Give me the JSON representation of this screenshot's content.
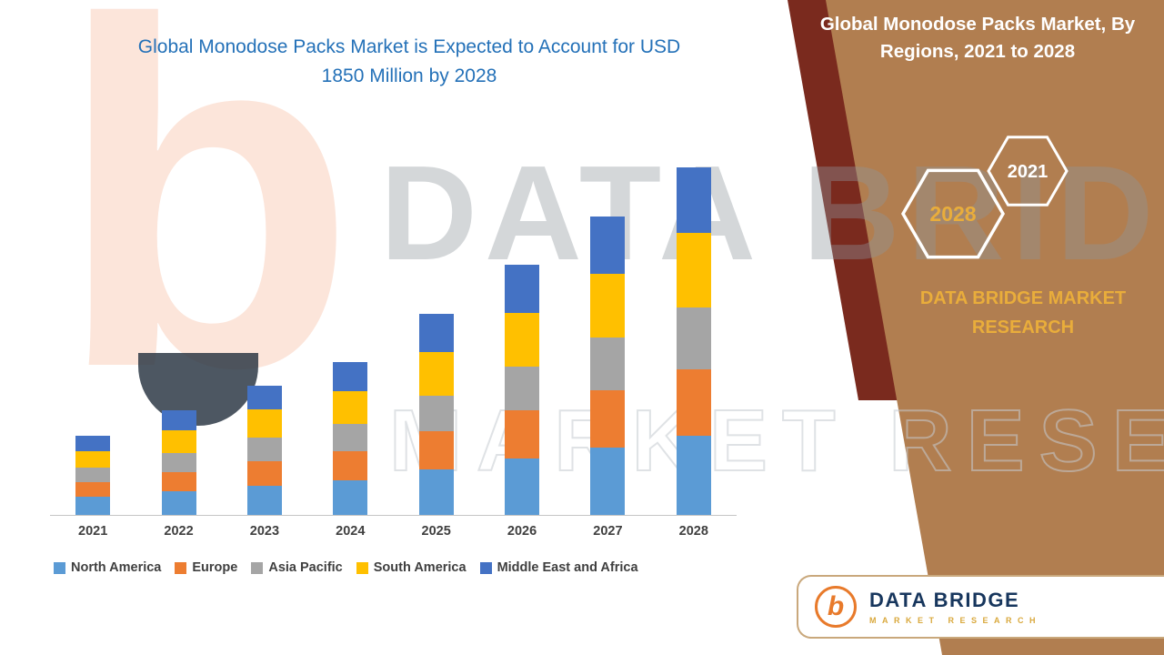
{
  "slide": {
    "left_title": "Global Monodose Packs Market is Expected to Account for USD 1850 Million by 2028",
    "right_panel": {
      "title": "Global Monodose Packs Market, By Regions, 2021 to 2028",
      "hex_back": "2028",
      "hex_front": "2021",
      "brand": "DATA BRIDGE MARKET RESEARCH"
    },
    "watermark": {
      "brand": "DATA BRIDGE",
      "tagline": "MARKET RESEARCH"
    },
    "footer": {
      "name": "DATA BRIDGE",
      "tagline": "MARKET RESEARCH"
    },
    "colors": {
      "panel_tan": "#B17E50",
      "panel_maroon": "#7A2A1E",
      "title_blue": "#2471B8",
      "brand_gold": "#E9AD3B"
    }
  },
  "chart_data": {
    "type": "bar",
    "stacked": true,
    "title": "Global Monodose Packs Market is Expected to Account for USD 1850 Million by 2028",
    "unit": "USD Million",
    "categories": [
      "2021",
      "2022",
      "2023",
      "2024",
      "2025",
      "2026",
      "2027",
      "2028"
    ],
    "series": [
      {
        "name": "North America",
        "color": "#5B9BD5",
        "values": [
          95,
          125,
          155,
          185,
          240,
          300,
          360,
          420
        ]
      },
      {
        "name": "Europe",
        "color": "#ED7D31",
        "values": [
          80,
          105,
          130,
          155,
          205,
          255,
          305,
          355
        ]
      },
      {
        "name": "Asia Pacific",
        "color": "#A5A5A5",
        "values": [
          75,
          100,
          125,
          145,
          190,
          235,
          280,
          330
        ]
      },
      {
        "name": "South America",
        "color": "#FFC000",
        "values": [
          90,
          120,
          150,
          175,
          230,
          285,
          340,
          395
        ]
      },
      {
        "name": "Middle East and Africa",
        "color": "#4472C4",
        "values": [
          80,
          105,
          130,
          155,
          205,
          255,
          305,
          350
        ]
      }
    ],
    "totals": [
      420,
      555,
      690,
      815,
      1070,
      1330,
      1590,
      1850
    ],
    "ylim": [
      0,
      1850
    ],
    "y_axis_visible": false,
    "grid": false,
    "legend_position": "bottom"
  }
}
